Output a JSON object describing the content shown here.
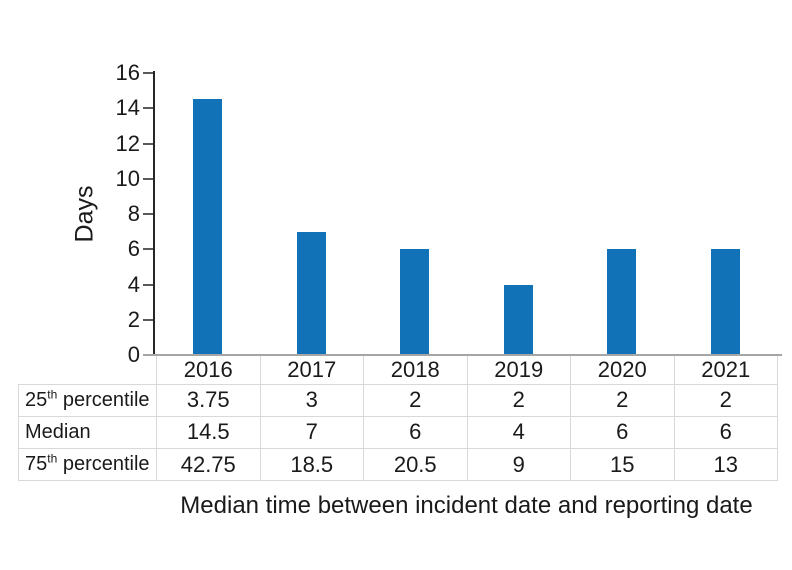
{
  "chart_data": {
    "type": "bar",
    "title": "",
    "caption": "Median time between incident date and reporting date",
    "xlabel": "",
    "ylabel": "Days",
    "categories": [
      "2016",
      "2017",
      "2018",
      "2019",
      "2020",
      "2021"
    ],
    "series_name": "Median",
    "values": [
      14.5,
      7,
      6,
      4,
      6,
      6
    ],
    "ylim": [
      0,
      16
    ],
    "yticks": [
      0,
      2,
      4,
      6,
      8,
      10,
      12,
      14,
      16
    ],
    "grid": false,
    "legend": "none",
    "bar_color": "#1272b8",
    "table": {
      "row_labels": [
        {
          "base": "25",
          "sup": "th",
          "rest": " percentile"
        },
        {
          "base": "Median",
          "sup": "",
          "rest": ""
        },
        {
          "base": "75",
          "sup": "th",
          "rest": " percentile"
        }
      ],
      "rows": [
        [
          "3.75",
          "3",
          "2",
          "2",
          "2",
          "2"
        ],
        [
          "14.5",
          "7",
          "6",
          "4",
          "6",
          "6"
        ],
        [
          "42.75",
          "18.5",
          "20.5",
          "9",
          "15",
          "13"
        ]
      ]
    }
  }
}
